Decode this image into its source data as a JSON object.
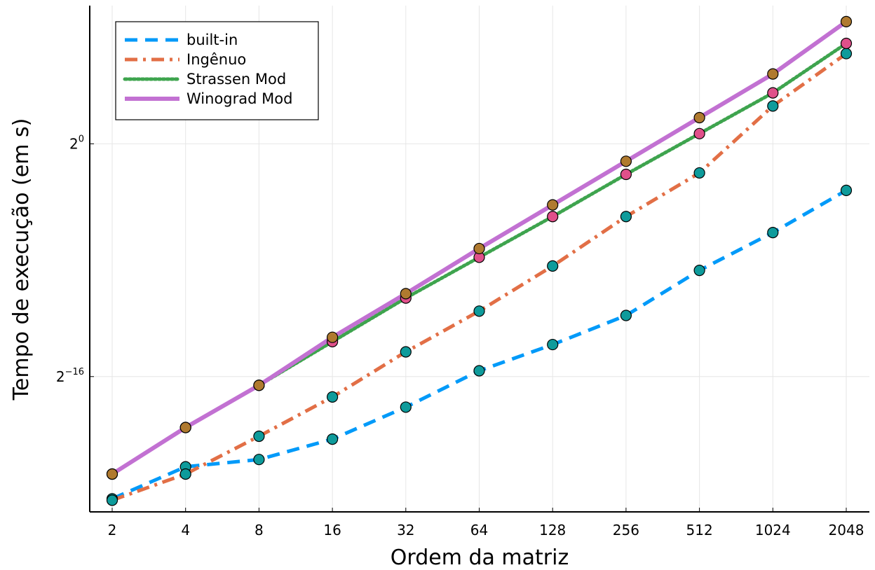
{
  "chart_data": {
    "type": "line",
    "title": "",
    "xlabel": "Ordem da matriz",
    "ylabel": "Tempo de execução (em s)",
    "x_scale": "log2",
    "y_scale": "log2",
    "x": [
      2,
      4,
      8,
      16,
      32,
      64,
      128,
      256,
      512,
      1024,
      2048
    ],
    "x_tick_labels": [
      "2",
      "4",
      "8",
      "16",
      "32",
      "64",
      "128",
      "256",
      "512",
      "1024",
      "2048"
    ],
    "y_ticks": [
      {
        "exp": 0,
        "base": "2",
        "sup": "0"
      },
      {
        "exp": -16,
        "base": "2",
        "sup": "−16"
      }
    ],
    "ylim_log2": [
      -25.3,
      9.5
    ],
    "grid": true,
    "legend_position": "top-left",
    "series": [
      {
        "name": "built-in",
        "color": "#009AF9",
        "style": "dashed",
        "marker_color": "#0E9B9B",
        "log2_values": [
          -24.4,
          -22.2,
          -21.7,
          -20.3,
          -18.1,
          -15.6,
          -13.8,
          -11.8,
          -8.7,
          -6.1,
          -3.2
        ]
      },
      {
        "name": "Ingênuo",
        "color": "#E26F46",
        "style": "dashdot",
        "marker_color": "#0E9B9B",
        "log2_values": [
          -24.5,
          -22.7,
          -20.1,
          -17.4,
          -14.3,
          -11.5,
          -8.4,
          -5.0,
          -2.0,
          2.6,
          6.2
        ]
      },
      {
        "name": "Strassen Mod",
        "color": "#3EA44E",
        "style": "dotted",
        "marker_color": "#E0508A",
        "log2_values": [
          -22.7,
          -19.5,
          -16.6,
          -13.6,
          -10.6,
          -7.8,
          -5.0,
          -2.1,
          0.7,
          3.5,
          6.9
        ]
      },
      {
        "name": "Winograd Mod",
        "color": "#C271D2",
        "style": "solid",
        "marker_color": "#B07A2F",
        "log2_values": [
          -22.7,
          -19.5,
          -16.6,
          -13.3,
          -10.3,
          -7.2,
          -4.2,
          -1.2,
          1.8,
          4.8,
          8.4
        ]
      }
    ]
  }
}
